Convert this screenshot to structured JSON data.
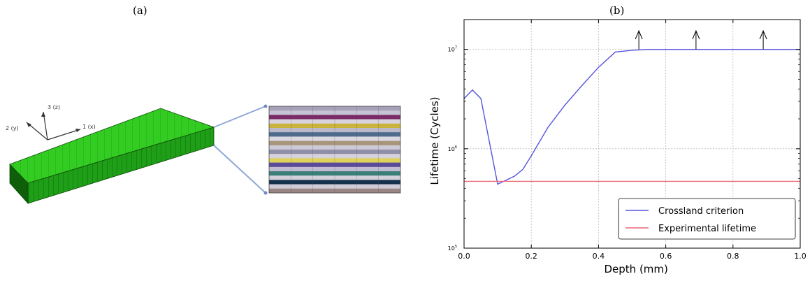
{
  "panels": {
    "a_label": "(a)",
    "b_label": "(b)"
  },
  "axes_triad": {
    "x_label": "1 (x)",
    "y_label": "2 (y)",
    "z_label": "3 (z)"
  },
  "colors": {
    "beam_top": "#33cc22",
    "beam_front": "#1f9e17",
    "beam_side": "#0f5f0a",
    "connector": "#8fa8d6",
    "crossland": "#5555dd",
    "experimental": "#ee6677"
  },
  "layer_colors": [
    "#a8a0b8",
    "#c7c3d4",
    "#7a2b66",
    "#d8d2de",
    "#c9b33a",
    "#bdb8c8",
    "#4d6c8c",
    "#dcd8e2",
    "#a8967a",
    "#cdc9d6",
    "#8f8fa8",
    "#d6d2dc",
    "#ddd35a",
    "#5a4a98",
    "#c2bcd0",
    "#3c7f7a",
    "#d4d0da",
    "#15304a",
    "#cfcbd6",
    "#9a8484"
  ],
  "chart_data": {
    "type": "line",
    "title": "",
    "xlabel": "Depth (mm)",
    "ylabel": "Lifetime (Cycles)",
    "xlim": [
      0.0,
      1.0
    ],
    "ylim_log10": [
      5.0,
      7.3
    ],
    "y_scale": "log",
    "grid": true,
    "legend_position": "bottom-right",
    "x_ticks": [
      "0.0",
      "0.2",
      "0.4",
      "0.6",
      "0.8",
      "1.0"
    ],
    "x_tick_values": [
      0.0,
      0.2,
      0.4,
      0.6,
      0.8,
      1.0
    ],
    "y_ticks": [
      {
        "value": 100000,
        "base": "10",
        "exp": "5"
      },
      {
        "value": 1000000,
        "base": "10",
        "exp": "6"
      },
      {
        "value": 10000000,
        "base": "10",
        "exp": "7"
      }
    ],
    "series": [
      {
        "name": "Crossland criterion",
        "color": "#5555dd",
        "x": [
          0.0,
          0.025,
          0.05,
          0.1,
          0.15,
          0.175,
          0.2,
          0.25,
          0.3,
          0.35,
          0.4,
          0.45,
          0.5,
          0.55,
          0.6,
          0.7,
          0.8,
          0.9,
          1.0
        ],
        "y": [
          3200000,
          3900000,
          3200000,
          440000,
          530000,
          620000,
          850000,
          1650000,
          2750000,
          4300000,
          6600000,
          9400000,
          9800000,
          10000000,
          10000000,
          10000000,
          10000000,
          10000000,
          10000000
        ]
      },
      {
        "name": "Experimental lifetime",
        "color": "#ee6677",
        "x": [
          0.0,
          1.0
        ],
        "y": [
          470000,
          470000
        ]
      }
    ],
    "runout_arrow_x": [
      0.52,
      0.69,
      0.89
    ]
  }
}
